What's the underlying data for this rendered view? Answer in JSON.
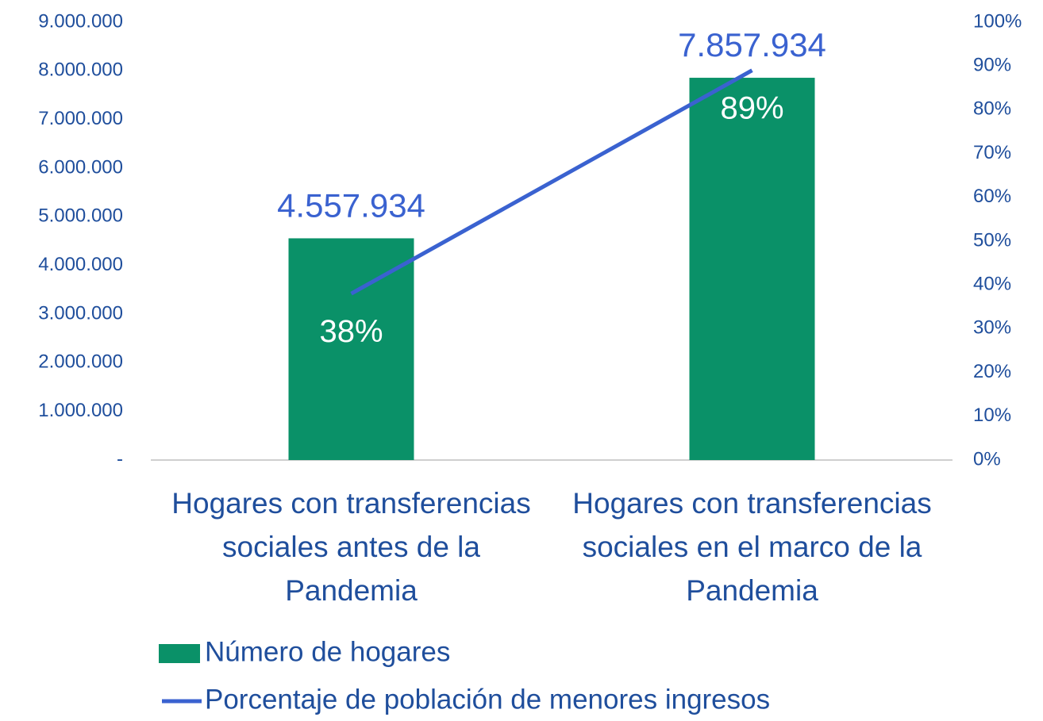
{
  "chart_data": {
    "type": "bar+line",
    "categories": [
      "Hogares con transferencias sociales antes de la Pandemia",
      "Hogares con transferencias sociales en el marco de la Pandemia"
    ],
    "series": [
      {
        "name": "Número de hogares",
        "type": "bar",
        "color": "#0a9168",
        "values": [
          4557934,
          7857934
        ],
        "value_labels": [
          "4.557.934",
          "7.857.934"
        ],
        "label_color": "#3a62d0"
      },
      {
        "name": "Porcentaje de población de menores ingresos",
        "type": "line",
        "axis": "y2",
        "color": "#3a62d0",
        "values": [
          38,
          89
        ],
        "value_labels": [
          "38%",
          "89%"
        ],
        "label_color": "#ffffff"
      }
    ],
    "ylim": [
      0,
      9000000
    ],
    "yticks": [
      {
        "value": 0,
        "label": "-"
      },
      {
        "value": 1000000,
        "label": "1.000.000"
      },
      {
        "value": 2000000,
        "label": "2.000.000"
      },
      {
        "value": 3000000,
        "label": "3.000.000"
      },
      {
        "value": 4000000,
        "label": "4.000.000"
      },
      {
        "value": 5000000,
        "label": "5.000.000"
      },
      {
        "value": 6000000,
        "label": "6.000.000"
      },
      {
        "value": 7000000,
        "label": "7.000.000"
      },
      {
        "value": 8000000,
        "label": "8.000.000"
      },
      {
        "value": 9000000,
        "label": "9.000.000"
      }
    ],
    "y2lim": [
      0,
      100
    ],
    "y2ticks": [
      {
        "value": 0,
        "label": "0%"
      },
      {
        "value": 10,
        "label": "10%"
      },
      {
        "value": 20,
        "label": "20%"
      },
      {
        "value": 30,
        "label": "30%"
      },
      {
        "value": 40,
        "label": "40%"
      },
      {
        "value": 50,
        "label": "50%"
      },
      {
        "value": 60,
        "label": "60%"
      },
      {
        "value": 70,
        "label": "70%"
      },
      {
        "value": 80,
        "label": "80%"
      },
      {
        "value": 90,
        "label": "90%"
      },
      {
        "value": 100,
        "label": "100%"
      }
    ],
    "grid": false,
    "legend": "bottom"
  }
}
